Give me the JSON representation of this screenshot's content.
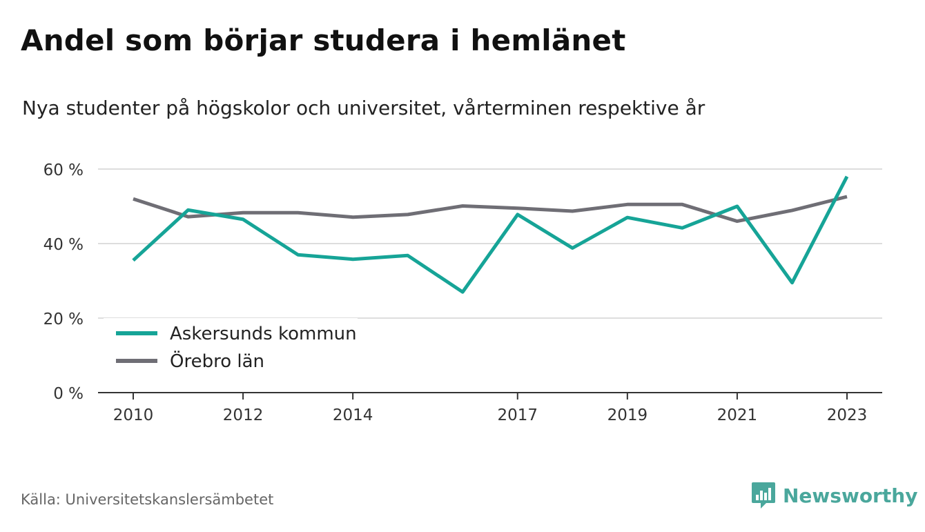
{
  "title": "Andel som börjar studera i hemlänet",
  "subtitle": "Nya studenter på högskolor och universitet, vårterminen respektive år",
  "source": "Källa: Universitetskanslersämbetet",
  "brand": {
    "name": "Newsworthy",
    "icon": "newsworthy-logo-icon",
    "color": "#4aa79c"
  },
  "chart_data": {
    "type": "line",
    "x": [
      2010,
      2011,
      2012,
      2013,
      2014,
      2015,
      2016,
      2017,
      2018,
      2019,
      2020,
      2021,
      2022,
      2023
    ],
    "x_ticks": [
      2010,
      2012,
      2014,
      2017,
      2019,
      2021,
      2023
    ],
    "y_ticks": [
      0,
      20,
      40,
      60
    ],
    "y_tick_suffix": " %",
    "ylim": [
      0,
      60
    ],
    "grid": true,
    "legend_position": "bottom-left",
    "series": [
      {
        "name": "Askersunds kommun",
        "color": "#16a497",
        "values": [
          35.5,
          49.0,
          46.5,
          37.0,
          35.8,
          36.8,
          27.0,
          47.8,
          38.8,
          47.0,
          44.2,
          50.0,
          29.5,
          58.0
        ]
      },
      {
        "name": "Örebro län",
        "color": "#6f6e75",
        "values": [
          52.0,
          47.2,
          48.3,
          48.3,
          47.1,
          47.8,
          50.1,
          49.5,
          48.7,
          50.5,
          50.5,
          46.0,
          48.9,
          52.6
        ]
      }
    ]
  }
}
